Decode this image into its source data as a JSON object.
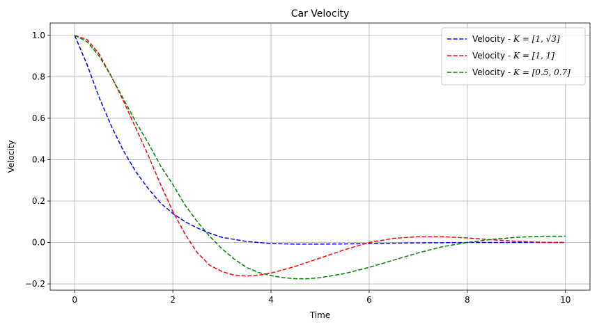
{
  "chart_data": {
    "type": "line",
    "title": "Car Velocity",
    "xlabel": "Time",
    "ylabel": "Velocity",
    "xlim": [
      -0.5,
      10.5
    ],
    "ylim": [
      -0.23,
      1.06
    ],
    "xticks": [
      0,
      2,
      4,
      6,
      8,
      10
    ],
    "xtick_labels": [
      "0",
      "2",
      "4",
      "6",
      "8",
      "10"
    ],
    "yticks": [
      -0.2,
      0.0,
      0.2,
      0.4,
      0.6,
      0.8,
      1.0
    ],
    "ytick_labels": [
      "−0.2",
      "0.0",
      "0.2",
      "0.4",
      "0.6",
      "0.8",
      "1.0"
    ],
    "grid": true,
    "legend_position": "top-right",
    "series": [
      {
        "name": "Velocity - K = [1, √3]",
        "legend_prefix": "Velocity - ",
        "legend_math": "K = [1, √3]",
        "color": "#0000ff",
        "style": "dashed",
        "x": [
          0,
          0.25,
          0.5,
          0.75,
          1.0,
          1.25,
          1.5,
          1.75,
          2.0,
          2.25,
          2.5,
          2.75,
          3.0,
          3.5,
          4.0,
          4.5,
          5.0,
          5.5,
          6.0,
          7.0,
          8.0,
          9.0,
          10.0
        ],
        "y": [
          1.0,
          0.86,
          0.7,
          0.56,
          0.44,
          0.34,
          0.26,
          0.19,
          0.14,
          0.1,
          0.07,
          0.045,
          0.025,
          0.005,
          -0.005,
          -0.008,
          -0.008,
          -0.007,
          -0.005,
          -0.002,
          0.0,
          0.0,
          0.0
        ]
      },
      {
        "name": "Velocity - K = [1, 1]",
        "legend_prefix": "Velocity - ",
        "legend_math": "K = [1, 1]",
        "color": "#ff0000",
        "style": "dashed",
        "x": [
          0,
          0.25,
          0.5,
          0.75,
          1.0,
          1.25,
          1.5,
          1.75,
          2.0,
          2.25,
          2.5,
          2.75,
          3.0,
          3.25,
          3.5,
          3.75,
          4.0,
          4.5,
          5.0,
          5.5,
          6.0,
          6.5,
          7.0,
          7.5,
          8.0,
          8.5,
          9.0,
          9.5,
          10.0
        ],
        "y": [
          1.0,
          0.98,
          0.91,
          0.8,
          0.68,
          0.55,
          0.42,
          0.28,
          0.15,
          0.04,
          -0.05,
          -0.11,
          -0.14,
          -0.158,
          -0.162,
          -0.158,
          -0.148,
          -0.115,
          -0.075,
          -0.035,
          0.0,
          0.02,
          0.028,
          0.028,
          0.022,
          0.013,
          0.006,
          0.001,
          0.0
        ]
      },
      {
        "name": "Velocity - K = [0.5, 0.7]",
        "legend_prefix": "Velocity - ",
        "legend_math": "K = [0.5, 0.7]",
        "color": "#008000",
        "style": "dashed",
        "x": [
          0,
          0.25,
          0.5,
          0.75,
          1.0,
          1.25,
          1.5,
          1.75,
          2.0,
          2.25,
          2.5,
          2.75,
          3.0,
          3.25,
          3.5,
          3.75,
          4.0,
          4.25,
          4.5,
          4.75,
          5.0,
          5.5,
          6.0,
          6.5,
          7.0,
          7.5,
          8.0,
          8.5,
          9.0,
          9.5,
          10.0
        ],
        "y": [
          1.0,
          0.97,
          0.9,
          0.8,
          0.69,
          0.58,
          0.48,
          0.37,
          0.28,
          0.18,
          0.1,
          0.03,
          -0.03,
          -0.08,
          -0.12,
          -0.145,
          -0.16,
          -0.17,
          -0.175,
          -0.175,
          -0.17,
          -0.15,
          -0.12,
          -0.085,
          -0.05,
          -0.02,
          0.0,
          0.015,
          0.025,
          0.03,
          0.03
        ]
      }
    ]
  }
}
